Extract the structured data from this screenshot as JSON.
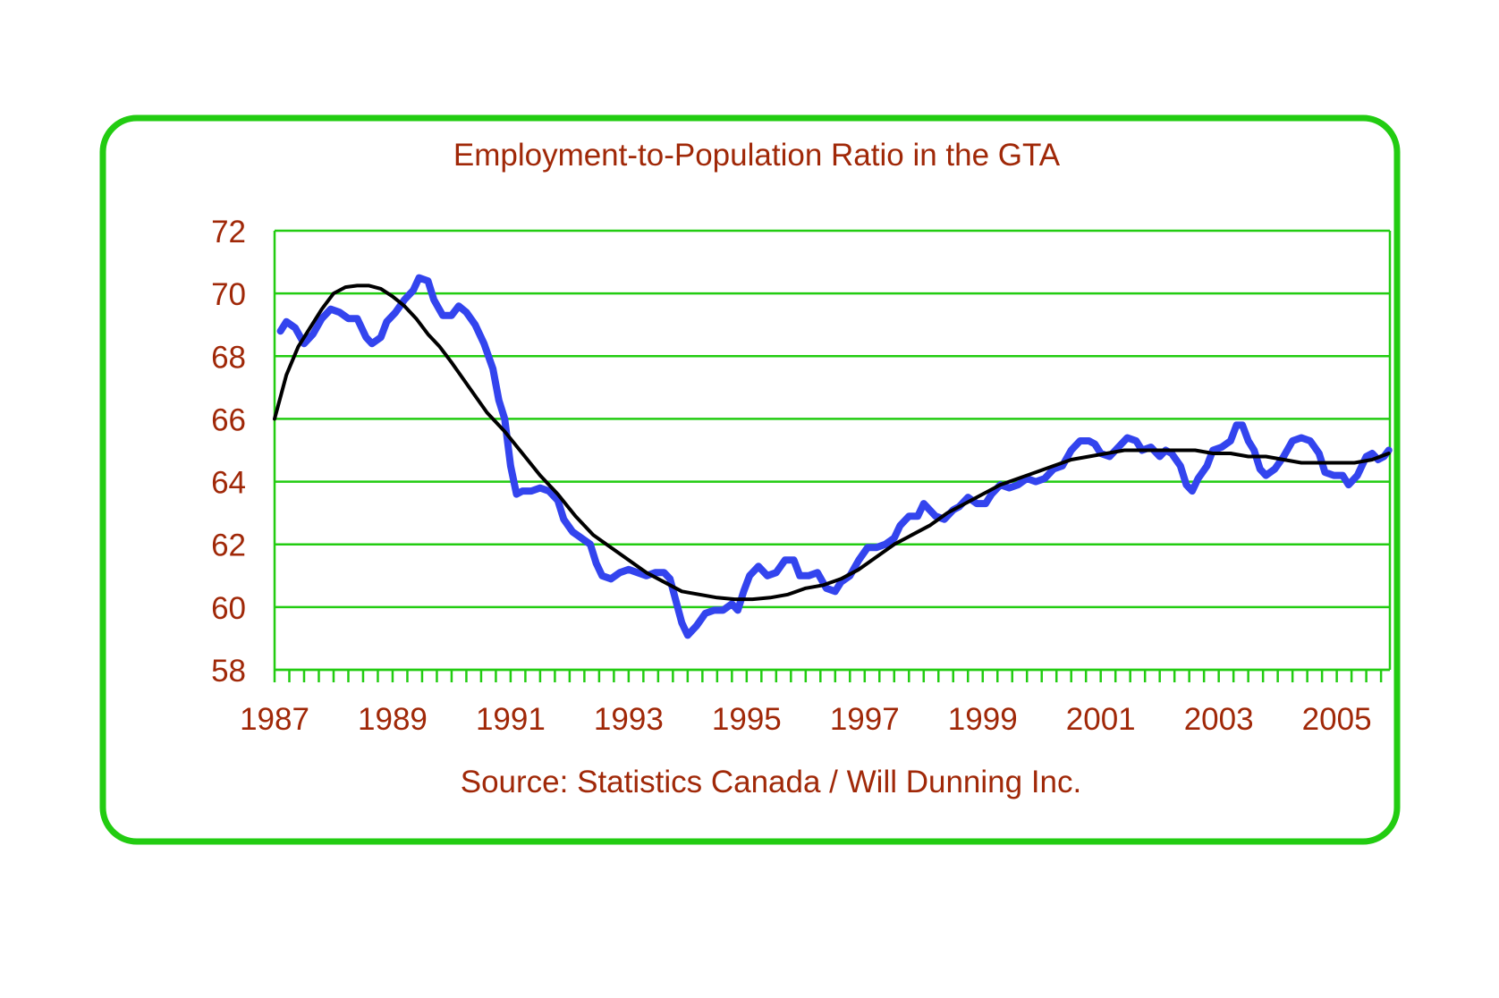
{
  "colors": {
    "frame": "#22cc11",
    "grid": "#22cc11",
    "text": "#a02808",
    "monthly_series": "#3344ee",
    "trend_series": "#000000"
  },
  "chart_data": {
    "type": "line",
    "title": "Employment-to-Population Ratio in the GTA",
    "source": "Source:  Statistics Canada / Will Dunning Inc.",
    "xlabel": "",
    "ylabel": "",
    "xlim": [
      1987.0,
      2005.9
    ],
    "ylim": [
      58,
      72
    ],
    "yticks": [
      "58",
      "60",
      "62",
      "64",
      "66",
      "68",
      "70",
      "72"
    ],
    "xticks": [
      "1987",
      "1989",
      "1991",
      "1993",
      "1995",
      "1997",
      "1999",
      "2001",
      "2003",
      "2005"
    ],
    "grid": true,
    "legend": "none",
    "series": [
      {
        "style": "monthly",
        "color": "#3344ee",
        "points": [
          [
            1987.1,
            68.8
          ],
          [
            1987.2,
            69.1
          ],
          [
            1987.35,
            68.9
          ],
          [
            1987.5,
            68.4
          ],
          [
            1987.65,
            68.7
          ],
          [
            1987.8,
            69.2
          ],
          [
            1987.95,
            69.5
          ],
          [
            1988.1,
            69.4
          ],
          [
            1988.25,
            69.2
          ],
          [
            1988.4,
            69.2
          ],
          [
            1988.55,
            68.6
          ],
          [
            1988.65,
            68.4
          ],
          [
            1988.8,
            68.6
          ],
          [
            1988.9,
            69.1
          ],
          [
            1989.05,
            69.4
          ],
          [
            1989.2,
            69.8
          ],
          [
            1989.35,
            70.1
          ],
          [
            1989.45,
            70.5
          ],
          [
            1989.6,
            70.4
          ],
          [
            1989.7,
            69.8
          ],
          [
            1989.85,
            69.3
          ],
          [
            1990.0,
            69.3
          ],
          [
            1990.12,
            69.6
          ],
          [
            1990.25,
            69.4
          ],
          [
            1990.4,
            69.0
          ],
          [
            1990.55,
            68.4
          ],
          [
            1990.7,
            67.6
          ],
          [
            1990.8,
            66.6
          ],
          [
            1990.9,
            66.0
          ],
          [
            1991.0,
            64.5
          ],
          [
            1991.1,
            63.6
          ],
          [
            1991.2,
            63.7
          ],
          [
            1991.35,
            63.7
          ],
          [
            1991.5,
            63.8
          ],
          [
            1991.65,
            63.7
          ],
          [
            1991.8,
            63.4
          ],
          [
            1991.9,
            62.8
          ],
          [
            1992.05,
            62.4
          ],
          [
            1992.2,
            62.2
          ],
          [
            1992.35,
            62.0
          ],
          [
            1992.45,
            61.4
          ],
          [
            1992.55,
            61.0
          ],
          [
            1992.7,
            60.9
          ],
          [
            1992.85,
            61.1
          ],
          [
            1993.0,
            61.2
          ],
          [
            1993.15,
            61.1
          ],
          [
            1993.3,
            61.0
          ],
          [
            1993.45,
            61.1
          ],
          [
            1993.6,
            61.1
          ],
          [
            1993.7,
            60.9
          ],
          [
            1993.8,
            60.2
          ],
          [
            1993.9,
            59.5
          ],
          [
            1994.0,
            59.1
          ],
          [
            1994.15,
            59.4
          ],
          [
            1994.3,
            59.8
          ],
          [
            1994.45,
            59.9
          ],
          [
            1994.6,
            59.9
          ],
          [
            1994.75,
            60.1
          ],
          [
            1994.85,
            59.9
          ],
          [
            1994.95,
            60.5
          ],
          [
            1995.05,
            61.0
          ],
          [
            1995.2,
            61.3
          ],
          [
            1995.35,
            61.0
          ],
          [
            1995.5,
            61.1
          ],
          [
            1995.65,
            61.5
          ],
          [
            1995.8,
            61.5
          ],
          [
            1995.9,
            61.0
          ],
          [
            1996.05,
            61.0
          ],
          [
            1996.2,
            61.1
          ],
          [
            1996.35,
            60.6
          ],
          [
            1996.5,
            60.5
          ],
          [
            1996.6,
            60.8
          ],
          [
            1996.75,
            61.0
          ],
          [
            1996.9,
            61.5
          ],
          [
            1997.05,
            61.9
          ],
          [
            1997.2,
            61.9
          ],
          [
            1997.35,
            62.0
          ],
          [
            1997.5,
            62.2
          ],
          [
            1997.6,
            62.6
          ],
          [
            1997.75,
            62.9
          ],
          [
            1997.9,
            62.9
          ],
          [
            1998.0,
            63.3
          ],
          [
            1998.1,
            63.1
          ],
          [
            1998.2,
            62.9
          ],
          [
            1998.35,
            62.8
          ],
          [
            1998.5,
            63.1
          ],
          [
            1998.6,
            63.2
          ],
          [
            1998.75,
            63.5
          ],
          [
            1998.9,
            63.3
          ],
          [
            1999.05,
            63.3
          ],
          [
            1999.15,
            63.6
          ],
          [
            1999.3,
            63.9
          ],
          [
            1999.45,
            63.8
          ],
          [
            1999.6,
            63.9
          ],
          [
            1999.75,
            64.1
          ],
          [
            1999.9,
            64.0
          ],
          [
            2000.05,
            64.1
          ],
          [
            2000.2,
            64.4
          ],
          [
            2000.35,
            64.5
          ],
          [
            2000.5,
            65.0
          ],
          [
            2000.65,
            65.3
          ],
          [
            2000.8,
            65.3
          ],
          [
            2000.9,
            65.2
          ],
          [
            2001.0,
            64.9
          ],
          [
            2001.15,
            64.8
          ],
          [
            2001.3,
            65.1
          ],
          [
            2001.45,
            65.4
          ],
          [
            2001.6,
            65.3
          ],
          [
            2001.7,
            65.0
          ],
          [
            2001.85,
            65.1
          ],
          [
            2002.0,
            64.8
          ],
          [
            2002.1,
            65.0
          ],
          [
            2002.2,
            64.9
          ],
          [
            2002.35,
            64.5
          ],
          [
            2002.45,
            63.9
          ],
          [
            2002.55,
            63.7
          ],
          [
            2002.65,
            64.1
          ],
          [
            2002.8,
            64.5
          ],
          [
            2002.9,
            65.0
          ],
          [
            2003.05,
            65.1
          ],
          [
            2003.2,
            65.3
          ],
          [
            2003.3,
            65.8
          ],
          [
            2003.4,
            65.8
          ],
          [
            2003.5,
            65.3
          ],
          [
            2003.6,
            65.0
          ],
          [
            2003.7,
            64.4
          ],
          [
            2003.8,
            64.2
          ],
          [
            2003.95,
            64.4
          ],
          [
            2004.1,
            64.8
          ],
          [
            2004.25,
            65.3
          ],
          [
            2004.4,
            65.4
          ],
          [
            2004.55,
            65.3
          ],
          [
            2004.7,
            64.9
          ],
          [
            2004.8,
            64.3
          ],
          [
            2004.95,
            64.2
          ],
          [
            2005.1,
            64.2
          ],
          [
            2005.2,
            63.9
          ],
          [
            2005.35,
            64.2
          ],
          [
            2005.5,
            64.8
          ],
          [
            2005.6,
            64.9
          ],
          [
            2005.7,
            64.7
          ],
          [
            2005.8,
            64.8
          ],
          [
            2005.88,
            65.0
          ]
        ]
      },
      {
        "style": "trend",
        "color": "#000000",
        "points": [
          [
            1987.0,
            66.0
          ],
          [
            1987.2,
            67.4
          ],
          [
            1987.4,
            68.3
          ],
          [
            1987.6,
            68.9
          ],
          [
            1987.8,
            69.5
          ],
          [
            1988.0,
            70.0
          ],
          [
            1988.2,
            70.2
          ],
          [
            1988.4,
            70.25
          ],
          [
            1988.6,
            70.25
          ],
          [
            1988.8,
            70.15
          ],
          [
            1989.0,
            69.9
          ],
          [
            1989.2,
            69.6
          ],
          [
            1989.4,
            69.2
          ],
          [
            1989.6,
            68.7
          ],
          [
            1989.8,
            68.3
          ],
          [
            1990.0,
            67.8
          ],
          [
            1990.3,
            67.0
          ],
          [
            1990.6,
            66.2
          ],
          [
            1990.9,
            65.6
          ],
          [
            1991.2,
            64.9
          ],
          [
            1991.5,
            64.2
          ],
          [
            1991.8,
            63.6
          ],
          [
            1992.1,
            62.9
          ],
          [
            1992.4,
            62.3
          ],
          [
            1992.7,
            61.9
          ],
          [
            1993.0,
            61.5
          ],
          [
            1993.3,
            61.1
          ],
          [
            1993.6,
            60.8
          ],
          [
            1993.9,
            60.5
          ],
          [
            1994.2,
            60.4
          ],
          [
            1994.5,
            60.3
          ],
          [
            1994.8,
            60.25
          ],
          [
            1995.1,
            60.25
          ],
          [
            1995.4,
            60.3
          ],
          [
            1995.7,
            60.4
          ],
          [
            1996.0,
            60.6
          ],
          [
            1996.3,
            60.7
          ],
          [
            1996.6,
            60.9
          ],
          [
            1996.9,
            61.2
          ],
          [
            1997.2,
            61.6
          ],
          [
            1997.5,
            62.0
          ],
          [
            1997.8,
            62.3
          ],
          [
            1998.1,
            62.6
          ],
          [
            1998.4,
            63.0
          ],
          [
            1998.7,
            63.3
          ],
          [
            1999.0,
            63.6
          ],
          [
            1999.3,
            63.9
          ],
          [
            1999.6,
            64.1
          ],
          [
            1999.9,
            64.3
          ],
          [
            2000.2,
            64.5
          ],
          [
            2000.5,
            64.7
          ],
          [
            2000.8,
            64.8
          ],
          [
            2001.1,
            64.9
          ],
          [
            2001.4,
            65.0
          ],
          [
            2001.7,
            65.0
          ],
          [
            2002.0,
            65.0
          ],
          [
            2002.3,
            65.0
          ],
          [
            2002.6,
            65.0
          ],
          [
            2002.9,
            64.9
          ],
          [
            2003.2,
            64.9
          ],
          [
            2003.5,
            64.8
          ],
          [
            2003.8,
            64.8
          ],
          [
            2004.1,
            64.7
          ],
          [
            2004.4,
            64.6
          ],
          [
            2004.7,
            64.6
          ],
          [
            2005.0,
            64.6
          ],
          [
            2005.3,
            64.6
          ],
          [
            2005.6,
            64.7
          ],
          [
            2005.88,
            64.9
          ]
        ]
      }
    ]
  }
}
